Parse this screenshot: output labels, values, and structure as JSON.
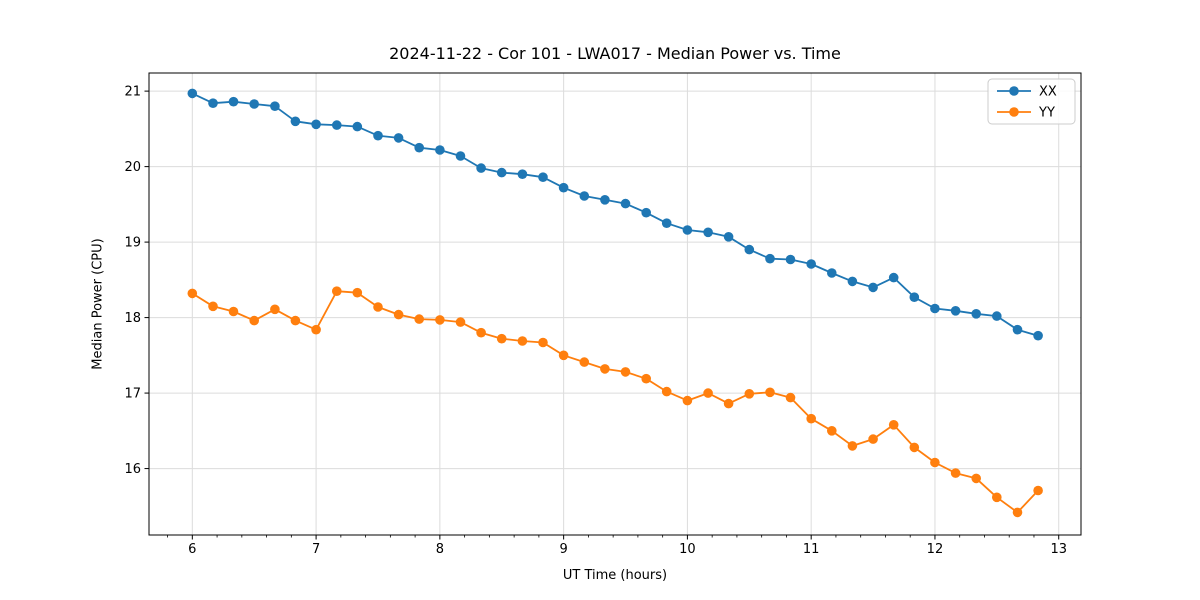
{
  "chart_data": {
    "type": "line",
    "title": "2024-11-22 - Cor 101 - LWA017 - Median Power vs. Time",
    "xlabel": "UT Time (hours)",
    "ylabel": "Median Power (CPU)",
    "x": [
      6.0,
      6.167,
      6.333,
      6.5,
      6.667,
      6.833,
      7.0,
      7.167,
      7.333,
      7.5,
      7.667,
      7.833,
      8.0,
      8.167,
      8.333,
      8.5,
      8.667,
      8.833,
      9.0,
      9.167,
      9.333,
      9.5,
      9.667,
      9.833,
      10.0,
      10.167,
      10.333,
      10.5,
      10.667,
      10.833,
      11.0,
      11.167,
      11.333,
      11.5,
      11.667,
      11.833,
      12.0,
      12.167,
      12.333,
      12.5,
      12.667,
      12.833
    ],
    "series": [
      {
        "name": "XX",
        "color": "#1f77b4",
        "values": [
          20.97,
          20.84,
          20.86,
          20.83,
          20.8,
          20.6,
          20.56,
          20.55,
          20.53,
          20.41,
          20.38,
          20.25,
          20.22,
          20.14,
          19.98,
          19.92,
          19.9,
          19.86,
          19.72,
          19.61,
          19.56,
          19.51,
          19.39,
          19.25,
          19.16,
          19.13,
          19.07,
          18.9,
          18.78,
          18.77,
          18.71,
          18.59,
          18.48,
          18.4,
          18.53,
          18.27,
          18.12,
          18.09,
          18.05,
          18.02,
          17.84,
          17.76
        ]
      },
      {
        "name": "YY",
        "color": "#ff7f0e",
        "values": [
          18.32,
          18.15,
          18.08,
          17.96,
          18.11,
          17.96,
          17.84,
          18.35,
          18.33,
          18.14,
          18.04,
          17.98,
          17.97,
          17.94,
          17.8,
          17.72,
          17.69,
          17.67,
          17.5,
          17.41,
          17.32,
          17.28,
          17.19,
          17.02,
          16.9,
          17.0,
          16.86,
          16.99,
          17.01,
          16.94,
          16.66,
          16.5,
          16.3,
          16.39,
          16.58,
          16.28,
          16.08,
          15.94,
          15.87,
          15.62,
          15.42,
          15.71
        ]
      }
    ],
    "xlim": [
      5.65,
      13.18
    ],
    "ylim": [
      15.12,
      21.24
    ],
    "xticks": [
      "6",
      "7",
      "8",
      "9",
      "10",
      "11",
      "12",
      "13"
    ],
    "xtick_values": [
      6,
      7,
      8,
      9,
      10,
      11,
      12,
      13
    ],
    "yticks": [
      "16",
      "17",
      "18",
      "19",
      "20",
      "21"
    ],
    "ytick_values": [
      16,
      17,
      18,
      19,
      20,
      21
    ],
    "x_minor_step": 0.2,
    "grid": true,
    "legend_position": "upper right"
  },
  "legend": {
    "entries": [
      {
        "label": "XX",
        "color": "#1f77b4"
      },
      {
        "label": "YY",
        "color": "#ff7f0e"
      }
    ]
  },
  "colors": {
    "grid": "#dcdcdc",
    "spine": "#000000",
    "tick": "#000000",
    "background": "#ffffff",
    "legend_border": "#cccccc",
    "legend_bg": "#ffffff"
  }
}
